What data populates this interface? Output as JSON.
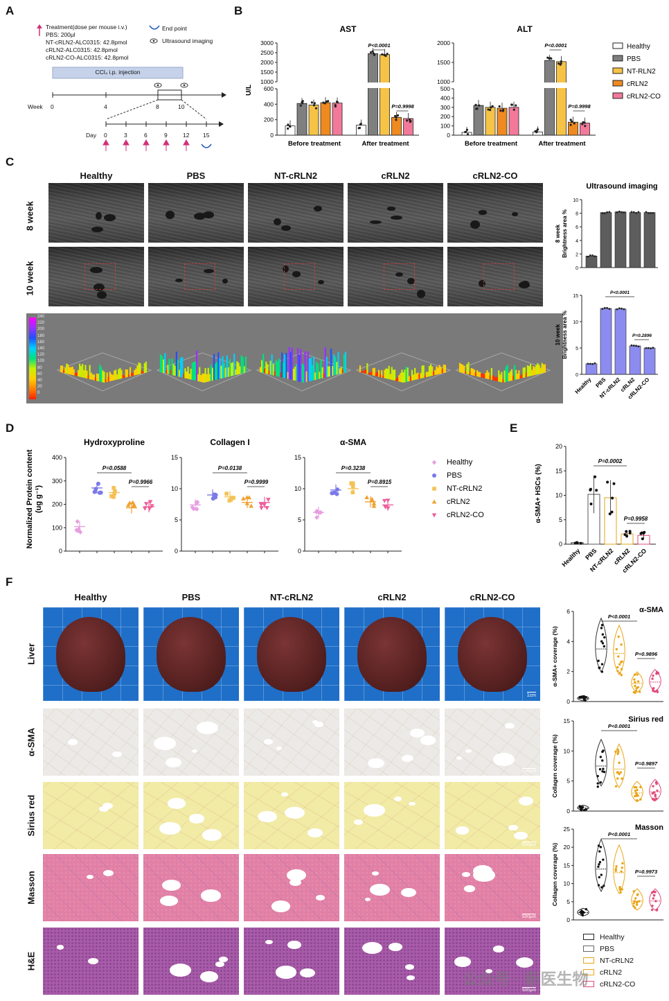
{
  "panels": {
    "A": {
      "label": "A",
      "legend": [
        {
          "icon": "arrow-up-icon",
          "text": "Treatment(dose per mouse i.v.)"
        },
        {
          "icon": "",
          "text": "PBS: 200μl"
        },
        {
          "icon": "",
          "text": "NT-cRLN2-ALC0315: 42.8pmol"
        },
        {
          "icon": "",
          "text": "cRLN2-ALC0315: 42.8pmol"
        },
        {
          "icon": "",
          "text": "cRLN2-CO-ALC0315: 42.8pmol"
        }
      ],
      "endpoint": "End point",
      "ultrasound": "Ultrasound imaging",
      "ccl4": "CCl₄ i.p. injection",
      "week_label": "Week",
      "weeks": [
        "0",
        "4",
        "8",
        "10"
      ],
      "day_label": "Day",
      "days": [
        "0",
        "3",
        "6",
        "9",
        "12",
        "15"
      ]
    },
    "B": {
      "label": "B"
    },
    "C": {
      "label": "C"
    },
    "D": {
      "label": "D"
    },
    "E": {
      "label": "E"
    },
    "F": {
      "label": "F"
    }
  },
  "groups": [
    "Healthy",
    "PBS",
    "NT-cRLN2",
    "cRLN2",
    "cRLN2-CO"
  ],
  "groups_legend_B": [
    "Healthy",
    "PBS",
    "NT-RLN2",
    "cRLN2",
    "cRLN2-CO"
  ],
  "colors": {
    "healthy": "#ffffff",
    "pbs": "#7f7f7f",
    "nt": "#f6c346",
    "crln2": "#ee8a1f",
    "co": "#f2799a",
    "us_bar_8w": "#5d5d5d",
    "us_bar_10w": "#8c8cf0",
    "d_healthy": "#e79ee0",
    "d_pbs": "#7b7ae8",
    "d_nt": "#f4c255",
    "d_crln2": "#f0a030",
    "d_co": "#ee5f9a",
    "violin_healthy": "#222222",
    "violin_pbs": "#333333",
    "violin_nt": "#e8a517",
    "violin_crln2": "#e8a517",
    "violin_co": "#e04a7a"
  },
  "chart_data": [
    {
      "id": "B-AST",
      "type": "bar",
      "title": "AST",
      "ylabel": "U/L",
      "x_groups": [
        "Before treatment",
        "After treatment"
      ],
      "series": [
        {
          "name": "Healthy",
          "values": [
            120,
            130
          ]
        },
        {
          "name": "PBS",
          "values": [
            410,
            2450
          ]
        },
        {
          "name": "NT-RLN2",
          "values": [
            390,
            2400
          ]
        },
        {
          "name": "cRLN2",
          "values": [
            420,
            230
          ]
        },
        {
          "name": "cRLN2-CO",
          "values": [
            415,
            215
          ]
        }
      ],
      "y_ticks": [
        "0",
        "200",
        "400",
        "600",
        "1000",
        "1500",
        "2000",
        "2500",
        "3000"
      ],
      "annotations": [
        "P<0.0001",
        "P=0.9998"
      ]
    },
    {
      "id": "B-ALT",
      "type": "bar",
      "title": "ALT",
      "x_groups": [
        "Before treatment",
        "After treatment"
      ],
      "series": [
        {
          "name": "Healthy",
          "values": [
            30,
            35
          ]
        },
        {
          "name": "PBS",
          "values": [
            320,
            1550
          ]
        },
        {
          "name": "NT-RLN2",
          "values": [
            300,
            1520
          ]
        },
        {
          "name": "cRLN2",
          "values": [
            290,
            140
          ]
        },
        {
          "name": "cRLN2-CO",
          "values": [
            300,
            130
          ]
        }
      ],
      "y_ticks": [
        "0",
        "100",
        "200",
        "300",
        "400",
        "500",
        "1000",
        "1500",
        "2000"
      ],
      "annotations": [
        "P<0.0001",
        "P=0.9998"
      ]
    },
    {
      "id": "C-8w",
      "type": "bar",
      "title": "Ultrasound imaging",
      "ylabel": "8 week\nBrightness area %",
      "categories": [
        "Healthy",
        "PBS",
        "NT-cRLN2",
        "cRLN2",
        "cRLN2-CO"
      ],
      "values": [
        1.7,
        8.1,
        8.2,
        8.1,
        8.1
      ],
      "ylim": [
        0,
        10
      ],
      "y_ticks": [
        "0",
        "2",
        "4",
        "6",
        "8",
        "10"
      ]
    },
    {
      "id": "C-10w",
      "type": "bar",
      "ylabel": "10 week\nBrightness area %",
      "categories": [
        "Healthy",
        "PBS",
        "NT-cRLN2",
        "cRLN2",
        "cRLN2-CO"
      ],
      "values": [
        2.0,
        12.5,
        12.4,
        5.4,
        5.0
      ],
      "ylim": [
        0,
        15
      ],
      "y_ticks": [
        "0",
        "5",
        "10",
        "15"
      ],
      "annotations": [
        "P<0.0001",
        "P=0.2896"
      ]
    },
    {
      "id": "D-Hyp",
      "type": "scatter",
      "title": "Hydroxyproline",
      "ylabel": "Normalized Protein content\n(ug g⁻¹)",
      "categories": [
        "Healthy",
        "PBS",
        "NT-cRLN2",
        "cRLN2",
        "cRLN2-CO"
      ],
      "mean": [
        105,
        270,
        250,
        185,
        190
      ],
      "ylim": [
        0,
        400
      ],
      "y_ticks": [
        "0",
        "100",
        "200",
        "300",
        "400"
      ],
      "annotations": [
        "P=0.0588",
        "P=0.9966"
      ]
    },
    {
      "id": "D-Col",
      "type": "scatter",
      "title": "Collagen I",
      "categories": [
        "Healthy",
        "PBS",
        "NT-cRLN2",
        "cRLN2",
        "cRLN2-CO"
      ],
      "mean": [
        7.4,
        9.0,
        8.7,
        7.8,
        7.8
      ],
      "ylim": [
        0,
        15
      ],
      "y_ticks": [
        "0",
        "5",
        "10",
        "15"
      ],
      "annotations": [
        "P=0.0138",
        "P=0.9999"
      ]
    },
    {
      "id": "D-SMA",
      "type": "scatter",
      "title": "α-SMA",
      "categories": [
        "Healthy",
        "PBS",
        "NT-cRLN2",
        "cRLN2",
        "cRLN2-CO"
      ],
      "mean": [
        6.2,
        9.8,
        10.0,
        7.9,
        7.4
      ],
      "ylim": [
        0,
        15
      ],
      "y_ticks": [
        "0",
        "5",
        "10",
        "15"
      ],
      "annotations": [
        "P=0.3238",
        "P=0.8915"
      ]
    },
    {
      "id": "E",
      "type": "bar",
      "ylabel": "α-SMA+ HSCs (%)",
      "categories": [
        "Healthy",
        "PBS",
        "NT-cRLN2",
        "cRLN2",
        "cRLN2-CO"
      ],
      "values": [
        0.3,
        10.2,
        9.5,
        2.1,
        1.8
      ],
      "ylim": [
        0,
        20
      ],
      "y_ticks": [
        "0",
        "5",
        "10",
        "15",
        "20"
      ],
      "annotations": [
        "P=0.0002",
        "P=0.9958"
      ]
    },
    {
      "id": "F-SMA",
      "type": "violin",
      "title": "α-SMA",
      "ylabel": "α-SMA+ coverage (%)",
      "categories": [
        "Healthy",
        "PBS",
        "NT-cRLN2",
        "cRLN2",
        "cRLN2-CO"
      ],
      "median": [
        0.2,
        3.5,
        3.2,
        1.2,
        1.3
      ],
      "ylim": [
        0,
        6
      ],
      "y_ticks": [
        "0",
        "2",
        "4",
        "6"
      ],
      "annotations": [
        "P<0.0001",
        "P=0.9896"
      ]
    },
    {
      "id": "F-SR",
      "type": "violin",
      "title": "Sirius red",
      "ylabel": "Collagen coverage (%)",
      "categories": [
        "Healthy",
        "PBS",
        "NT-cRLN2",
        "cRLN2",
        "cRLN2-CO"
      ],
      "median": [
        0.5,
        7.5,
        7.0,
        3.0,
        3.2
      ],
      "ylim": [
        0,
        15
      ],
      "y_ticks": [
        "0",
        "5",
        "10",
        "15"
      ],
      "annotations": [
        "P<0.0001",
        "P=0.9897"
      ]
    },
    {
      "id": "F-Mas",
      "type": "violin",
      "title": "Masson",
      "ylabel": "Collagen coverage (%)",
      "categories": [
        "Healthy",
        "PBS",
        "NT-cRLN2",
        "cRLN2",
        "cRLN2-CO"
      ],
      "median": [
        2.0,
        14.0,
        13.0,
        5.2,
        5.2
      ],
      "ylim": [
        0,
        25
      ],
      "y_ticks": [
        "0",
        "5",
        "10",
        "15",
        "20",
        "25"
      ],
      "annotations": [
        "P<0.0001",
        "P=0.9973"
      ]
    }
  ],
  "panelC": {
    "cols": [
      "Healthy",
      "PBS",
      "NT-cRLN2",
      "cRLN2",
      "cRLN2-CO"
    ],
    "rows": [
      "8 week",
      "10 week"
    ],
    "colorbar_ticks": [
      "240",
      "220",
      "200",
      "180",
      "160",
      "140",
      "120",
      "100",
      "80",
      "60",
      "40",
      "20",
      "0"
    ]
  },
  "panelF": {
    "cols": [
      "Healthy",
      "PBS",
      "NT-cRLN2",
      "cRLN2",
      "cRLN2-CO"
    ],
    "rows": [
      "Liver",
      "α-SMA",
      "Sirius red",
      "Masson",
      "H&E"
    ],
    "scale_liver": "1cm",
    "scale_micro": "500μm",
    "legend": [
      "Healthy",
      "PBS",
      "NT-cRLN2",
      "cRLN2",
      "cRLN2-CO"
    ]
  },
  "watermark": "公众号 · 新医生物"
}
